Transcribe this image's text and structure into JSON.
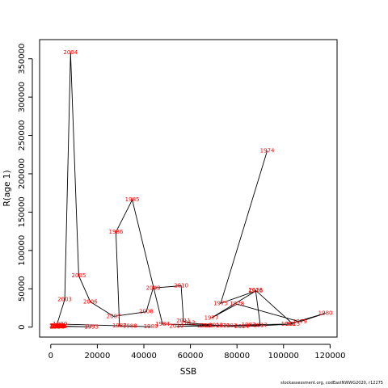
{
  "chart_data": {
    "type": "scatter",
    "title": "",
    "xlabel": "SSB",
    "ylabel": "R(age 1)",
    "xlim": [
      -4800,
      123000
    ],
    "ylim": [
      -13000,
      375000
    ],
    "xticks": [
      0,
      20000,
      40000,
      60000,
      80000,
      100000,
      120000
    ],
    "yticks": [
      0,
      50000,
      100000,
      150000,
      200000,
      250000,
      300000,
      350000
    ],
    "xtick_labels": [
      "0",
      "20000",
      "40000",
      "60000",
      "80000",
      "100000",
      "120000"
    ],
    "ytick_labels": [
      "0",
      "50000",
      "100000",
      "150000",
      "200000",
      "250000",
      "300000",
      "350000"
    ],
    "line_color": "#000000",
    "label_color": "#ff0000",
    "grid": false,
    "points": [
      {
        "year": "1974",
        "x": 93000,
        "y": 230000
      },
      {
        "year": "1975",
        "x": 73000,
        "y": 31000
      },
      {
        "year": "1976",
        "x": 88000,
        "y": 47000
      },
      {
        "year": "1977",
        "x": 69000,
        "y": 12000
      },
      {
        "year": "1978",
        "x": 80000,
        "y": 30000
      },
      {
        "year": "1979",
        "x": 107000,
        "y": 7000
      },
      {
        "year": "1980",
        "x": 118000,
        "y": 18000
      },
      {
        "year": "1981",
        "x": 102000,
        "y": 4000
      },
      {
        "year": "1982",
        "x": 85000,
        "y": 3000
      },
      {
        "year": "1983",
        "x": 77000,
        "y": 2000
      },
      {
        "year": "1984",
        "x": 48000,
        "y": 4000
      },
      {
        "year": "1985",
        "x": 35000,
        "y": 166000
      },
      {
        "year": "1986",
        "x": 28000,
        "y": 124000
      },
      {
        "year": "1987",
        "x": 29500,
        "y": 1500
      },
      {
        "year": "1988",
        "x": 34000,
        "y": 1200
      },
      {
        "year": "1989",
        "x": 43000,
        "y": 500
      },
      {
        "year": "1990",
        "x": 4000,
        "y": 4000
      },
      {
        "year": "1991",
        "x": 3500,
        "y": 2000
      },
      {
        "year": "1992",
        "x": 3000,
        "y": 1500
      },
      {
        "year": "1993",
        "x": 17500,
        "y": 300
      },
      {
        "year": "1994",
        "x": 3000,
        "y": 1000
      },
      {
        "year": "1995",
        "x": 3500,
        "y": 700
      },
      {
        "year": "1996",
        "x": 4000,
        "y": 500
      },
      {
        "year": "1997",
        "x": 2500,
        "y": 400
      },
      {
        "year": "1998",
        "x": 3000,
        "y": 300
      },
      {
        "year": "1999",
        "x": 3500,
        "y": 700
      },
      {
        "year": "2000",
        "x": 2500,
        "y": 500
      },
      {
        "year": "2001",
        "x": 3000,
        "y": 900
      },
      {
        "year": "2002",
        "x": 2500,
        "y": 2000
      },
      {
        "year": "2003",
        "x": 6000,
        "y": 36000
      },
      {
        "year": "2004",
        "x": 8500,
        "y": 358000
      },
      {
        "year": "2005",
        "x": 12000,
        "y": 67000
      },
      {
        "year": "2006",
        "x": 17000,
        "y": 33000
      },
      {
        "year": "2007",
        "x": 27000,
        "y": 14000
      },
      {
        "year": "2008",
        "x": 41000,
        "y": 20000
      },
      {
        "year": "2009",
        "x": 44000,
        "y": 51000
      },
      {
        "year": "2010",
        "x": 56000,
        "y": 54000
      },
      {
        "year": "2011",
        "x": 57000,
        "y": 8000
      },
      {
        "year": "2012",
        "x": 59000,
        "y": 5500
      },
      {
        "year": "2013",
        "x": 71000,
        "y": 2500
      },
      {
        "year": "2014",
        "x": 82000,
        "y": 500
      },
      {
        "year": "2015",
        "x": 104000,
        "y": 4000
      },
      {
        "year": "2016",
        "x": 88000,
        "y": 48000
      },
      {
        "year": "2017",
        "x": 90000,
        "y": 2500
      },
      {
        "year": "2018",
        "x": 66000,
        "y": 2000
      },
      {
        "year": "2019",
        "x": 54000,
        "y": 1000
      },
      {
        "year": "2020",
        "x": 67000,
        "y": 1500
      },
      {
        "year": "2021",
        "x": 74000,
        "y": 2000
      }
    ]
  },
  "footer": "stockassessment.org, codEastNWWG2020, r12275"
}
